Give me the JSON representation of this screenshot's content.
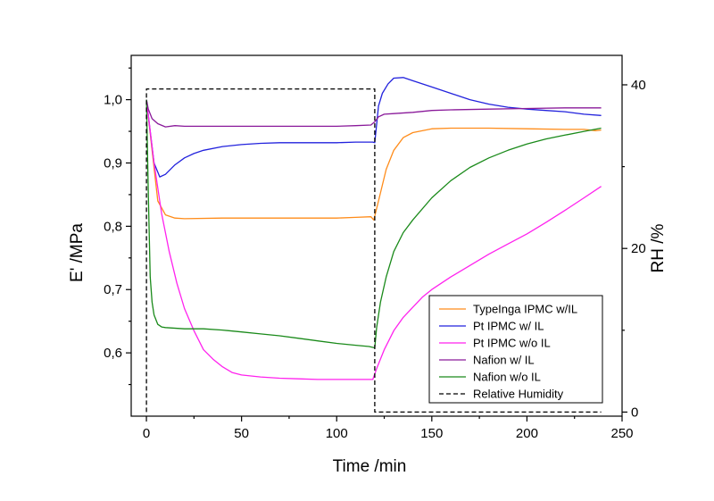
{
  "chart_data": {
    "type": "line",
    "title": "",
    "xlabel": "Time /min",
    "ylabel": "E' /MPa",
    "y2label": "RH /%",
    "xlim": [
      -8,
      250
    ],
    "ylim": [
      0.5,
      1.07
    ],
    "y2lim": [
      -0.5,
      43.6
    ],
    "xticks": [
      0,
      50,
      100,
      150,
      200,
      250
    ],
    "xtick_labels": [
      "0",
      "50",
      "100",
      "150",
      "200",
      "250"
    ],
    "yticks": [
      0.6,
      0.7,
      0.8,
      0.9,
      1.0
    ],
    "ytick_labels": [
      "0,6",
      "0,7",
      "0,8",
      "0,9",
      "1,0"
    ],
    "y2ticks": [
      0,
      20,
      40
    ],
    "y2tick_labels": [
      "0",
      "20",
      "40"
    ],
    "grid": false,
    "legend_position": "bottom-right",
    "series": [
      {
        "name": "TypeInga IPMC w/IL",
        "color": "#ff8c1a",
        "axis": "left",
        "dash": "",
        "points": [
          [
            0,
            1.0
          ],
          [
            3,
            0.92
          ],
          [
            6,
            0.84
          ],
          [
            10,
            0.818
          ],
          [
            15,
            0.813
          ],
          [
            20,
            0.812
          ],
          [
            40,
            0.813
          ],
          [
            60,
            0.813
          ],
          [
            80,
            0.813
          ],
          [
            100,
            0.813
          ],
          [
            110,
            0.814
          ],
          [
            118,
            0.815
          ],
          [
            119.5,
            0.81
          ],
          [
            122,
            0.84
          ],
          [
            126,
            0.89
          ],
          [
            130,
            0.92
          ],
          [
            135,
            0.94
          ],
          [
            140,
            0.948
          ],
          [
            150,
            0.954
          ],
          [
            160,
            0.955
          ],
          [
            180,
            0.955
          ],
          [
            200,
            0.954
          ],
          [
            220,
            0.953
          ],
          [
            230,
            0.953
          ],
          [
            236,
            0.951
          ],
          [
            239,
            0.952
          ]
        ]
      },
      {
        "name": "Pt IPMC w/ IL",
        "color": "#2222dd",
        "axis": "left",
        "dash": "",
        "points": [
          [
            0,
            1.0
          ],
          [
            2,
            0.95
          ],
          [
            4,
            0.9
          ],
          [
            7,
            0.878
          ],
          [
            10,
            0.882
          ],
          [
            15,
            0.897
          ],
          [
            20,
            0.908
          ],
          [
            25,
            0.915
          ],
          [
            30,
            0.92
          ],
          [
            40,
            0.926
          ],
          [
            50,
            0.929
          ],
          [
            60,
            0.931
          ],
          [
            70,
            0.932
          ],
          [
            80,
            0.932
          ],
          [
            90,
            0.932
          ],
          [
            100,
            0.932
          ],
          [
            110,
            0.933
          ],
          [
            119,
            0.933
          ],
          [
            120,
            0.932
          ],
          [
            122,
            0.99
          ],
          [
            124,
            1.01
          ],
          [
            127,
            1.025
          ],
          [
            130,
            1.034
          ],
          [
            135,
            1.035
          ],
          [
            140,
            1.03
          ],
          [
            150,
            1.02
          ],
          [
            160,
            1.01
          ],
          [
            170,
            1.0
          ],
          [
            180,
            0.993
          ],
          [
            190,
            0.988
          ],
          [
            200,
            0.985
          ],
          [
            210,
            0.983
          ],
          [
            220,
            0.981
          ],
          [
            230,
            0.977
          ],
          [
            239,
            0.975
          ]
        ]
      },
      {
        "name": "Pt IPMC w/o IL",
        "color": "#ff22ee",
        "axis": "left",
        "dash": "",
        "points": [
          [
            0,
            1.0
          ],
          [
            4,
            0.9
          ],
          [
            8,
            0.82
          ],
          [
            12,
            0.76
          ],
          [
            16,
            0.71
          ],
          [
            20,
            0.67
          ],
          [
            25,
            0.635
          ],
          [
            30,
            0.605
          ],
          [
            35,
            0.59
          ],
          [
            40,
            0.578
          ],
          [
            45,
            0.569
          ],
          [
            50,
            0.565
          ],
          [
            60,
            0.562
          ],
          [
            70,
            0.56
          ],
          [
            80,
            0.559
          ],
          [
            90,
            0.558
          ],
          [
            100,
            0.558
          ],
          [
            110,
            0.558
          ],
          [
            119,
            0.558
          ],
          [
            121,
            0.575
          ],
          [
            125,
            0.605
          ],
          [
            130,
            0.635
          ],
          [
            135,
            0.656
          ],
          [
            140,
            0.672
          ],
          [
            145,
            0.688
          ],
          [
            150,
            0.7
          ],
          [
            160,
            0.72
          ],
          [
            170,
            0.738
          ],
          [
            180,
            0.756
          ],
          [
            190,
            0.772
          ],
          [
            200,
            0.788
          ],
          [
            210,
            0.806
          ],
          [
            220,
            0.825
          ],
          [
            230,
            0.845
          ],
          [
            239,
            0.863
          ]
        ]
      },
      {
        "name": "Nafion w/ IL",
        "color": "#8a1a9a",
        "axis": "left",
        "dash": "",
        "points": [
          [
            0,
            1.0
          ],
          [
            1,
            0.985
          ],
          [
            3,
            0.97
          ],
          [
            6,
            0.962
          ],
          [
            10,
            0.957
          ],
          [
            15,
            0.959
          ],
          [
            20,
            0.958
          ],
          [
            30,
            0.958
          ],
          [
            40,
            0.958
          ],
          [
            60,
            0.958
          ],
          [
            80,
            0.958
          ],
          [
            100,
            0.958
          ],
          [
            110,
            0.959
          ],
          [
            118,
            0.96
          ],
          [
            120,
            0.965
          ],
          [
            122,
            0.973
          ],
          [
            125,
            0.977
          ],
          [
            130,
            0.978
          ],
          [
            140,
            0.98
          ],
          [
            150,
            0.983
          ],
          [
            160,
            0.984
          ],
          [
            180,
            0.985
          ],
          [
            200,
            0.986
          ],
          [
            220,
            0.987
          ],
          [
            239,
            0.987
          ]
        ]
      },
      {
        "name": "Nafion w/o IL",
        "color": "#1a8a1a",
        "axis": "left",
        "dash": "",
        "points": [
          [
            0,
            1.0
          ],
          [
            1,
            0.85
          ],
          [
            2,
            0.72
          ],
          [
            3,
            0.68
          ],
          [
            4,
            0.66
          ],
          [
            6,
            0.645
          ],
          [
            8,
            0.641
          ],
          [
            10,
            0.64
          ],
          [
            20,
            0.638
          ],
          [
            30,
            0.638
          ],
          [
            40,
            0.636
          ],
          [
            50,
            0.633
          ],
          [
            60,
            0.63
          ],
          [
            70,
            0.627
          ],
          [
            80,
            0.623
          ],
          [
            90,
            0.619
          ],
          [
            100,
            0.615
          ],
          [
            110,
            0.612
          ],
          [
            117,
            0.61
          ],
          [
            120,
            0.608
          ],
          [
            121,
            0.64
          ],
          [
            123,
            0.68
          ],
          [
            126,
            0.72
          ],
          [
            130,
            0.76
          ],
          [
            135,
            0.79
          ],
          [
            140,
            0.81
          ],
          [
            150,
            0.845
          ],
          [
            160,
            0.872
          ],
          [
            170,
            0.893
          ],
          [
            180,
            0.908
          ],
          [
            190,
            0.92
          ],
          [
            200,
            0.93
          ],
          [
            210,
            0.938
          ],
          [
            220,
            0.944
          ],
          [
            230,
            0.95
          ],
          [
            239,
            0.955
          ]
        ]
      },
      {
        "name": "Relative Humidity",
        "color": "#000000",
        "axis": "right",
        "dash": "5,3",
        "points": [
          [
            0,
            0
          ],
          [
            0,
            39.5
          ],
          [
            120,
            39.5
          ],
          [
            120,
            0
          ],
          [
            239,
            0
          ]
        ]
      }
    ]
  }
}
